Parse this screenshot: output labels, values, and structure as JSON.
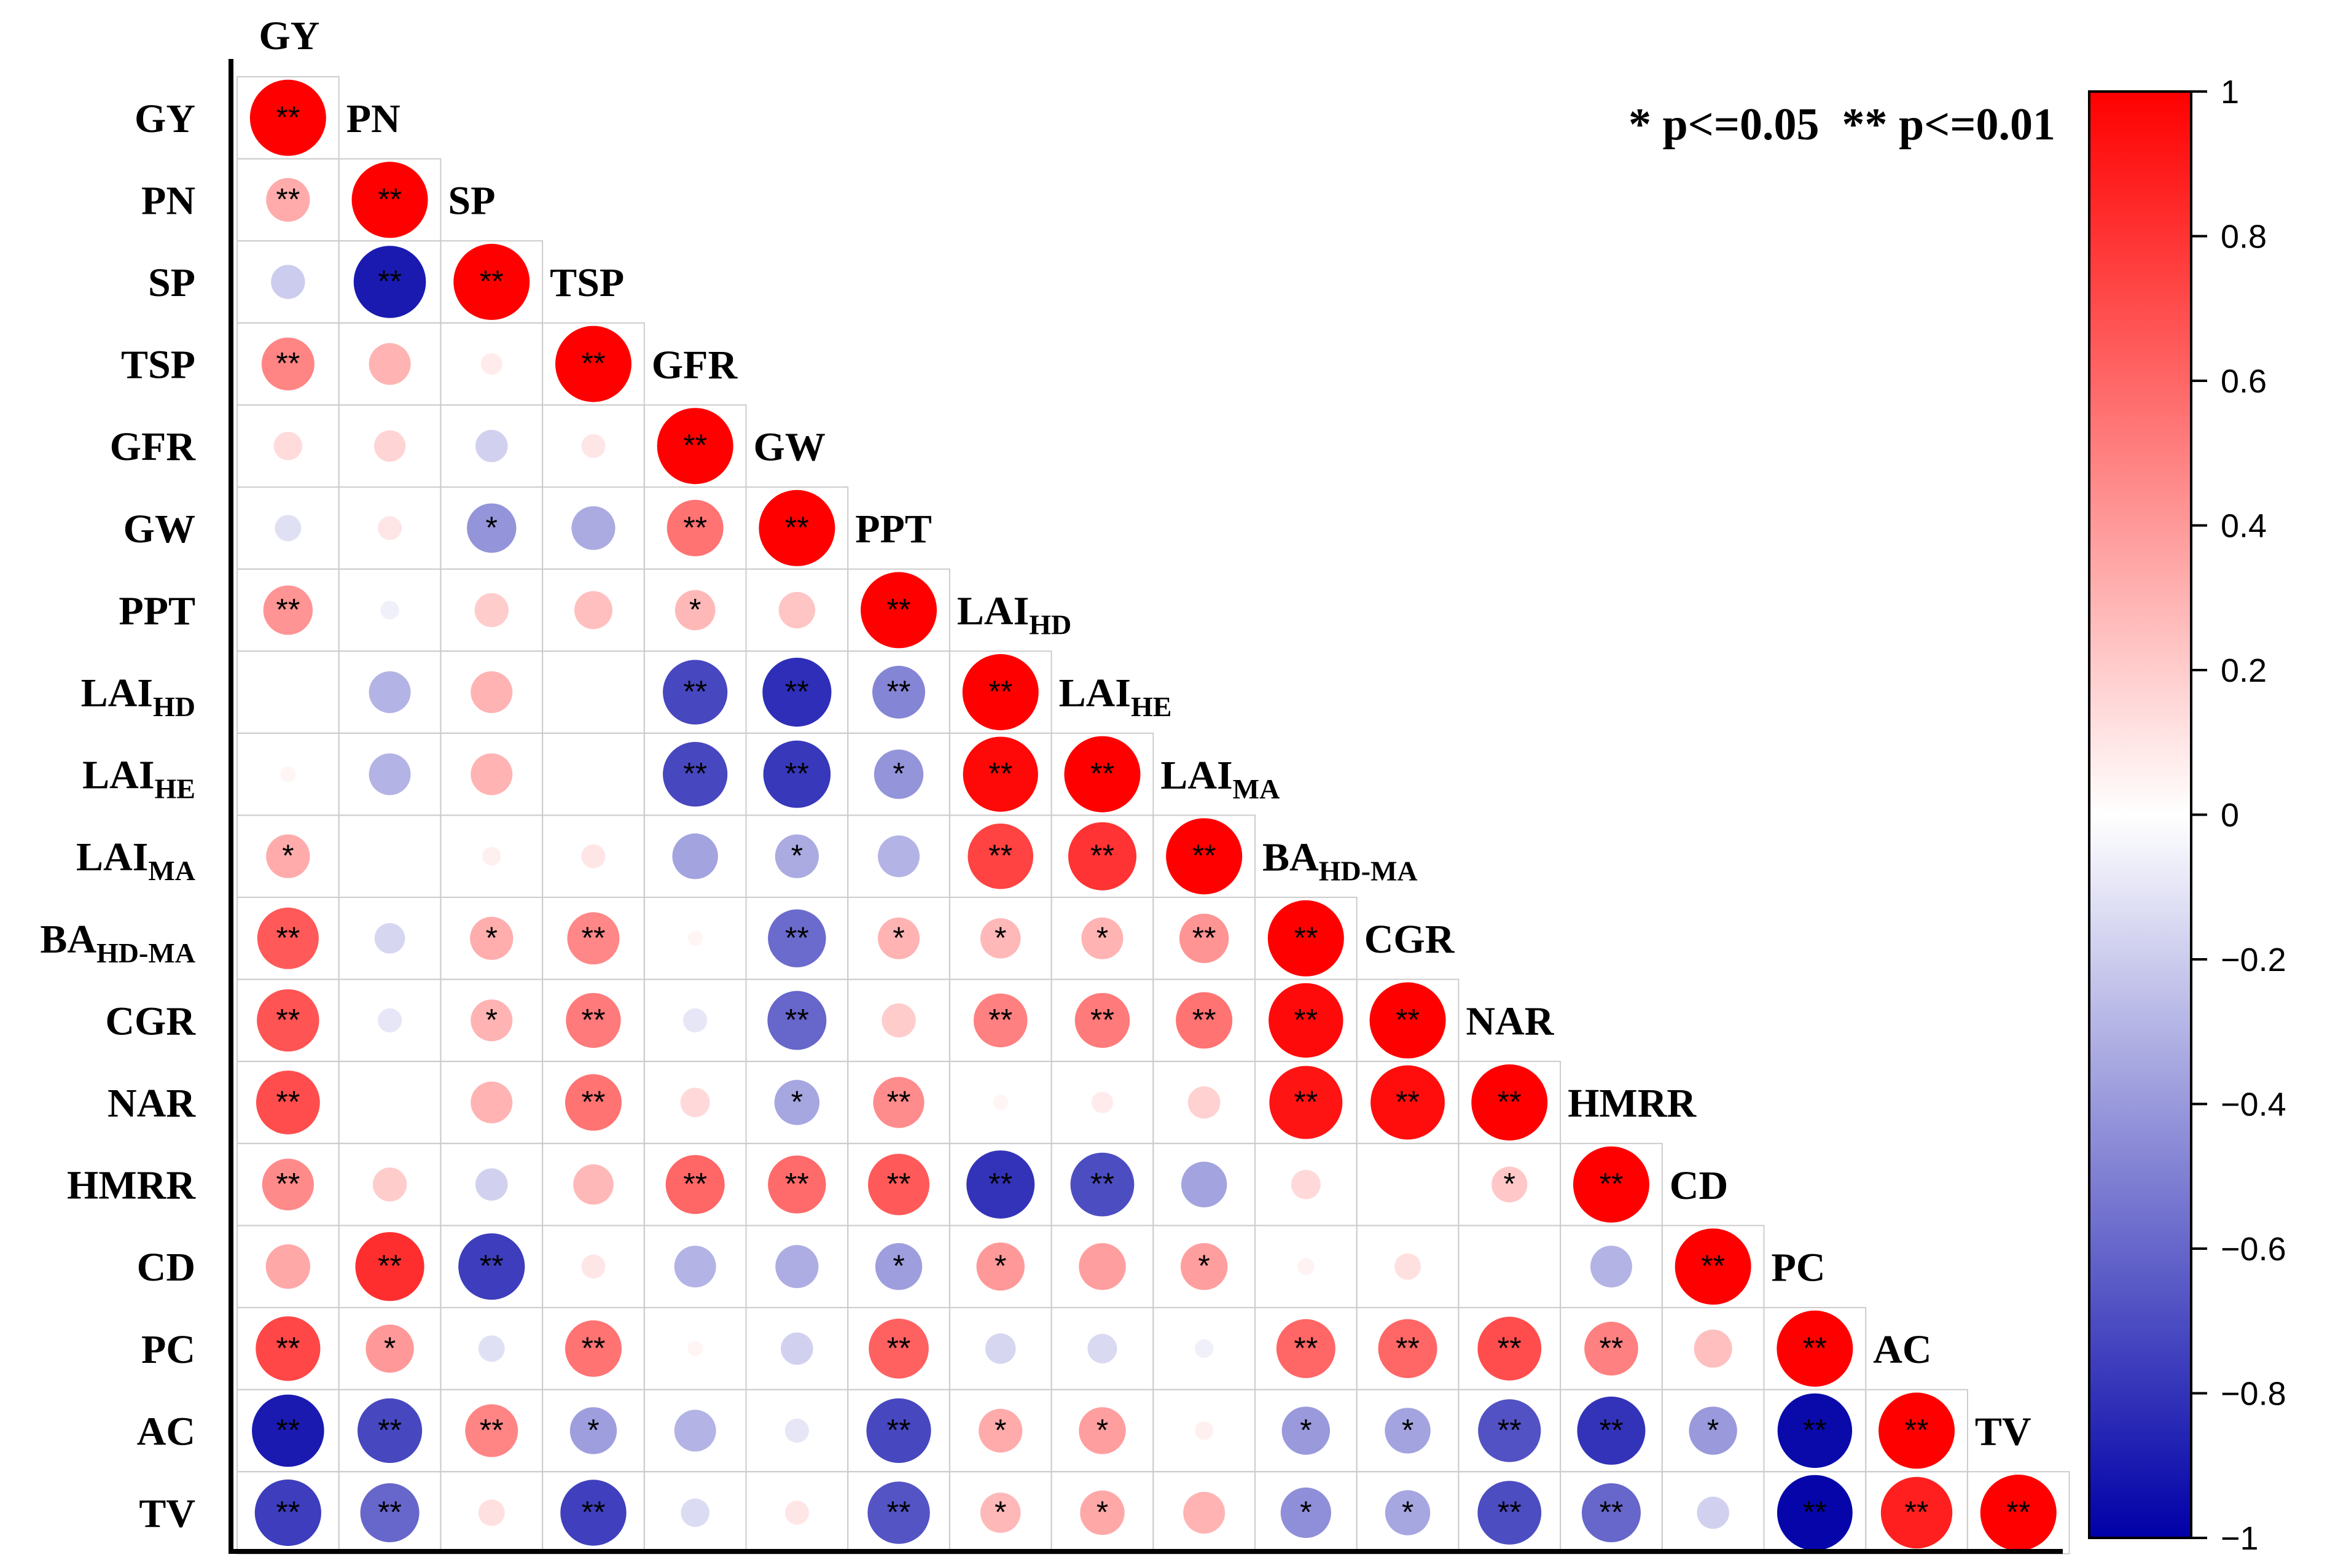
{
  "chart_data": {
    "type": "heatmap",
    "subtype": "lower-triangle correlation matrix (circle size and colour encode r)",
    "variables": [
      {
        "id": "GY",
        "main": "GY",
        "sub": ""
      },
      {
        "id": "PN",
        "main": "PN",
        "sub": ""
      },
      {
        "id": "SP",
        "main": "SP",
        "sub": ""
      },
      {
        "id": "TSP",
        "main": "TSP",
        "sub": ""
      },
      {
        "id": "GFR",
        "main": "GFR",
        "sub": ""
      },
      {
        "id": "GW",
        "main": "GW",
        "sub": ""
      },
      {
        "id": "PPT",
        "main": "PPT",
        "sub": ""
      },
      {
        "id": "LAI_HD",
        "main": "LAI",
        "sub": "HD"
      },
      {
        "id": "LAI_HE",
        "main": "LAI",
        "sub": "HE"
      },
      {
        "id": "LAI_MA",
        "main": "LAI",
        "sub": "MA"
      },
      {
        "id": "BA_HD-MA",
        "main": "BA",
        "sub": "HD-MA"
      },
      {
        "id": "CGR",
        "main": "CGR",
        "sub": ""
      },
      {
        "id": "NAR",
        "main": "NAR",
        "sub": ""
      },
      {
        "id": "HMRR",
        "main": "HMRR",
        "sub": ""
      },
      {
        "id": "CD",
        "main": "CD",
        "sub": ""
      },
      {
        "id": "PC",
        "main": "PC",
        "sub": ""
      },
      {
        "id": "AC",
        "main": "AC",
        "sub": ""
      },
      {
        "id": "TV",
        "main": "TV",
        "sub": ""
      }
    ],
    "correlations": [
      [
        1.0
      ],
      [
        0.33,
        1.0
      ],
      [
        -0.2,
        -0.9,
        1.0
      ],
      [
        0.48,
        0.3,
        0.08,
        1.0
      ],
      [
        0.14,
        0.17,
        -0.18,
        0.1,
        1.0
      ],
      [
        -0.12,
        0.1,
        -0.42,
        -0.33,
        0.55,
        1.0
      ],
      [
        0.42,
        -0.06,
        0.2,
        0.25,
        0.28,
        0.23,
        1.0
      ],
      [
        0.0,
        -0.3,
        0.3,
        0.0,
        -0.72,
        -0.82,
        -0.48,
        1.0
      ],
      [
        0.04,
        -0.3,
        0.3,
        0.0,
        -0.72,
        -0.78,
        -0.42,
        0.97,
        1.0
      ],
      [
        0.33,
        0.0,
        0.06,
        0.1,
        -0.36,
        -0.33,
        -0.3,
        0.74,
        0.8,
        1.0
      ],
      [
        0.65,
        -0.16,
        0.32,
        0.47,
        0.04,
        -0.58,
        0.3,
        0.28,
        0.3,
        0.42,
        1.0
      ],
      [
        0.67,
        -0.1,
        0.3,
        0.52,
        -0.1,
        -0.6,
        0.2,
        0.5,
        0.52,
        0.55,
        0.96,
        1.0
      ],
      [
        0.7,
        0.0,
        0.3,
        0.55,
        0.15,
        -0.35,
        0.45,
        0.04,
        0.08,
        0.18,
        0.92,
        0.95,
        1.0
      ],
      [
        0.46,
        0.2,
        -0.18,
        0.28,
        0.6,
        0.58,
        0.65,
        -0.8,
        -0.7,
        -0.36,
        0.15,
        0.0,
        0.22,
        1.0
      ],
      [
        0.34,
        0.82,
        -0.76,
        0.1,
        -0.3,
        -0.32,
        -0.38,
        0.4,
        0.38,
        0.38,
        0.05,
        0.12,
        0.0,
        -0.3,
        1.0
      ],
      [
        0.72,
        0.4,
        -0.12,
        0.55,
        0.04,
        -0.18,
        0.62,
        -0.16,
        -0.15,
        -0.06,
        0.6,
        0.6,
        0.7,
        0.5,
        0.25,
        1.0
      ],
      [
        -0.9,
        -0.72,
        0.48,
        -0.38,
        -0.3,
        -0.1,
        -0.72,
        0.33,
        0.38,
        0.06,
        -0.4,
        -0.36,
        -0.68,
        -0.8,
        -0.4,
        -0.96,
        1.0
      ],
      [
        -0.76,
        -0.6,
        0.12,
        -0.75,
        -0.14,
        0.1,
        -0.67,
        0.28,
        0.34,
        0.3,
        -0.44,
        -0.35,
        -0.7,
        -0.6,
        -0.18,
        -0.98,
        0.88,
        1.0
      ]
    ],
    "significance": [
      [
        "**"
      ],
      [
        "**",
        "**"
      ],
      [
        "",
        "**",
        "**"
      ],
      [
        "**",
        "",
        "",
        "**"
      ],
      [
        "",
        "",
        "",
        "",
        "**"
      ],
      [
        "",
        "",
        "*",
        "",
        "**",
        "**"
      ],
      [
        "**",
        "",
        "",
        "",
        "*",
        "",
        "**"
      ],
      [
        "",
        "",
        "",
        "",
        "**",
        "**",
        "**",
        "**"
      ],
      [
        "",
        "",
        "",
        "",
        "**",
        "**",
        "*",
        "**",
        "**"
      ],
      [
        "*",
        "",
        "",
        "",
        "",
        "*",
        "",
        "**",
        "**",
        "**"
      ],
      [
        "**",
        "",
        "*",
        "**",
        "",
        "**",
        "*",
        "*",
        "*",
        "**",
        "**"
      ],
      [
        "**",
        "",
        "*",
        "**",
        "",
        "**",
        "",
        "**",
        "**",
        "**",
        "**",
        "**"
      ],
      [
        "**",
        "",
        "",
        "**",
        "",
        "*",
        "**",
        "",
        "",
        "",
        "**",
        "**",
        "**"
      ],
      [
        "**",
        "",
        "",
        "",
        "**",
        "**",
        "**",
        "**",
        "**",
        "",
        "",
        "",
        "*",
        "**"
      ],
      [
        "",
        "**",
        "**",
        "",
        "",
        "",
        "*",
        "*",
        "",
        "*",
        "",
        "",
        "",
        "",
        "**"
      ],
      [
        "**",
        "*",
        "",
        "**",
        "",
        "",
        "**",
        "",
        "",
        "",
        "**",
        "**",
        "**",
        "**",
        "",
        "**"
      ],
      [
        "**",
        "**",
        "**",
        "*",
        "",
        "",
        "**",
        "*",
        "*",
        "",
        "*",
        "*",
        "**",
        "**",
        "*",
        "**",
        "**"
      ],
      [
        "**",
        "**",
        "",
        "**",
        "",
        "",
        "**",
        "*",
        "*",
        "",
        "*",
        "*",
        "**",
        "**",
        "",
        "**",
        "**",
        "**"
      ]
    ],
    "legend_text": "* p<=0.05  ** p<=0.01",
    "colorbar": {
      "range": [
        -1,
        1
      ],
      "ticks": [
        "1",
        "0.8",
        "0.6",
        "0.4",
        "0.2",
        "0",
        "−0.2",
        "−0.4",
        "−0.6",
        "−0.8",
        "−1"
      ],
      "tick_values": [
        1,
        0.8,
        0.6,
        0.4,
        0.2,
        0,
        -0.2,
        -0.4,
        -0.6,
        -0.8,
        -1
      ],
      "color_low": "#0000a8",
      "color_mid": "#ffffff",
      "color_high": "#ff0000"
    },
    "colors": {
      "grid": "#cccccc",
      "axis": "#000000"
    }
  }
}
